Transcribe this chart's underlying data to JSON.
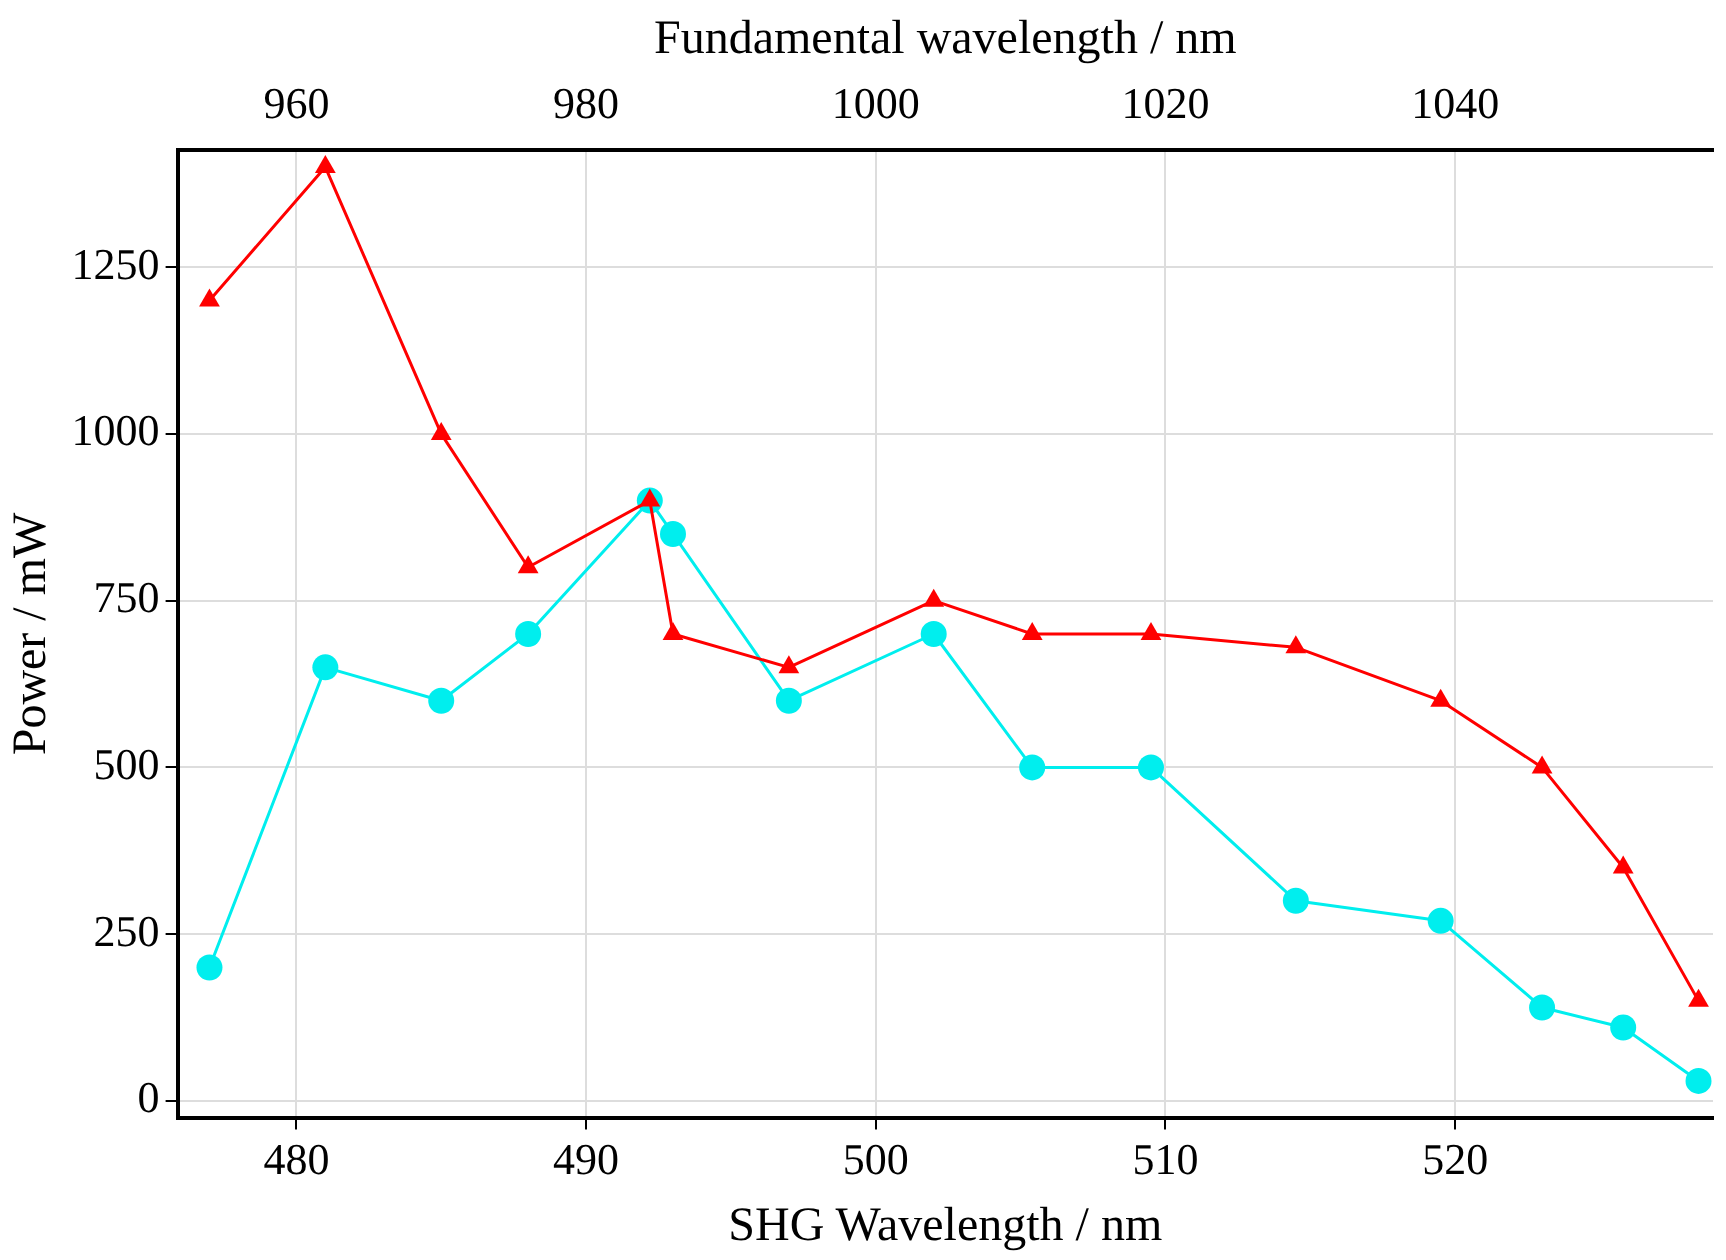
{
  "chart_data": {
    "type": "line",
    "xlabel": "SHG Wavelength / nm",
    "ylabel": "Power / mW",
    "x2label": "Fundamental wavelength / nm",
    "xlim": [
      475.9,
      528.9
    ],
    "xticks": [
      480,
      490,
      500,
      510,
      520
    ],
    "x2lim": [
      951.8,
      1057.8
    ],
    "x2ticks": [
      960,
      980,
      1000,
      1020,
      1040
    ],
    "ylim": [
      -25,
      1425
    ],
    "yticks": [
      0,
      250,
      500,
      750,
      1000,
      1250
    ],
    "grid": true,
    "legend": false,
    "line_style": "solid",
    "series": [
      {
        "color": "#ff0000",
        "marker": "triangle",
        "x": [
          477,
          481,
          485,
          488,
          492.2,
          493,
          497,
          502,
          505.4,
          509.5,
          514.5,
          519.5,
          523,
          525.8,
          528.4
        ],
        "values": [
          1200,
          1400,
          1000,
          800,
          900,
          700,
          650,
          750,
          700,
          700,
          680,
          600,
          500,
          350,
          150
        ]
      },
      {
        "color": "#00eeee",
        "marker": "circle",
        "x": [
          477,
          481,
          485,
          488,
          492.2,
          493,
          497,
          502,
          505.4,
          509.5,
          514.5,
          519.5,
          523,
          525.8,
          528.4
        ],
        "values": [
          200,
          650,
          600,
          700,
          900,
          850,
          600,
          700,
          500,
          500,
          300,
          270,
          140,
          110,
          30
        ]
      }
    ]
  }
}
